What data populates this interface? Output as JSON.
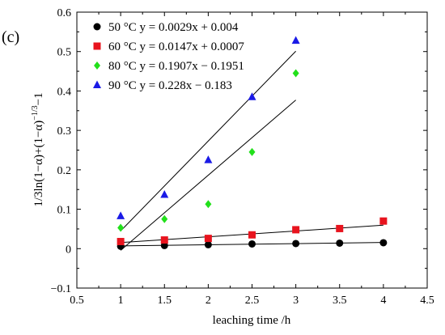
{
  "panel_label": "(c)",
  "chart_data": {
    "type": "scatter",
    "title": "",
    "xlabel": "leaching time /h",
    "ylabel": "1/3ln(1−α)+(1−α)−1/3−1",
    "xlim": [
      0.5,
      4.5
    ],
    "ylim": [
      -0.1,
      0.6
    ],
    "x_ticks": [
      "0.5",
      "1",
      "1.5",
      "2",
      "2.5",
      "3",
      "3.5",
      "4",
      "4.5"
    ],
    "y_ticks": [
      "−0.1",
      "0",
      "0.1",
      "0.2",
      "0.3",
      "0.4",
      "0.5",
      "0.6"
    ],
    "grid": false,
    "legend_position": "top-left",
    "series": [
      {
        "name": "50 °C y = 0.0029x + 0.004",
        "marker": "circle",
        "color": "#000000",
        "x": [
          1,
          1.5,
          2,
          2.5,
          3,
          3.5,
          4
        ],
        "y": [
          0.006,
          0.008,
          0.01,
          0.012,
          0.013,
          0.014,
          0.015
        ],
        "fit": {
          "slope": 0.0029,
          "intercept": 0.004,
          "x_range": [
            1,
            4
          ]
        }
      },
      {
        "name": "60 °C y = 0.0147x + 0.0007",
        "marker": "square",
        "color": "#e8141e",
        "x": [
          1,
          1.5,
          2,
          2.5,
          3,
          3.5,
          4
        ],
        "y": [
          0.018,
          0.022,
          0.026,
          0.035,
          0.048,
          0.051,
          0.07
        ],
        "fit": {
          "slope": 0.0147,
          "intercept": 0.0007,
          "x_range": [
            1,
            4
          ]
        }
      },
      {
        "name": "80 °C y = 0.1907x − 0.1951",
        "marker": "diamond",
        "color": "#22e01b",
        "x": [
          1,
          1.5,
          2,
          2.5,
          3
        ],
        "y": [
          0.053,
          0.075,
          0.113,
          0.245,
          0.445
        ],
        "fit": {
          "slope": 0.1907,
          "intercept": -0.1951,
          "x_range": [
            1,
            3
          ]
        }
      },
      {
        "name": "90 °C y = 0.228x − 0.183",
        "marker": "triangle",
        "color": "#1a1ae6",
        "x": [
          1,
          1.5,
          2,
          2.5,
          3
        ],
        "y": [
          0.083,
          0.137,
          0.225,
          0.385,
          0.528
        ],
        "fit": {
          "slope": 0.228,
          "intercept": -0.183,
          "x_range": [
            1,
            3
          ]
        }
      }
    ]
  }
}
